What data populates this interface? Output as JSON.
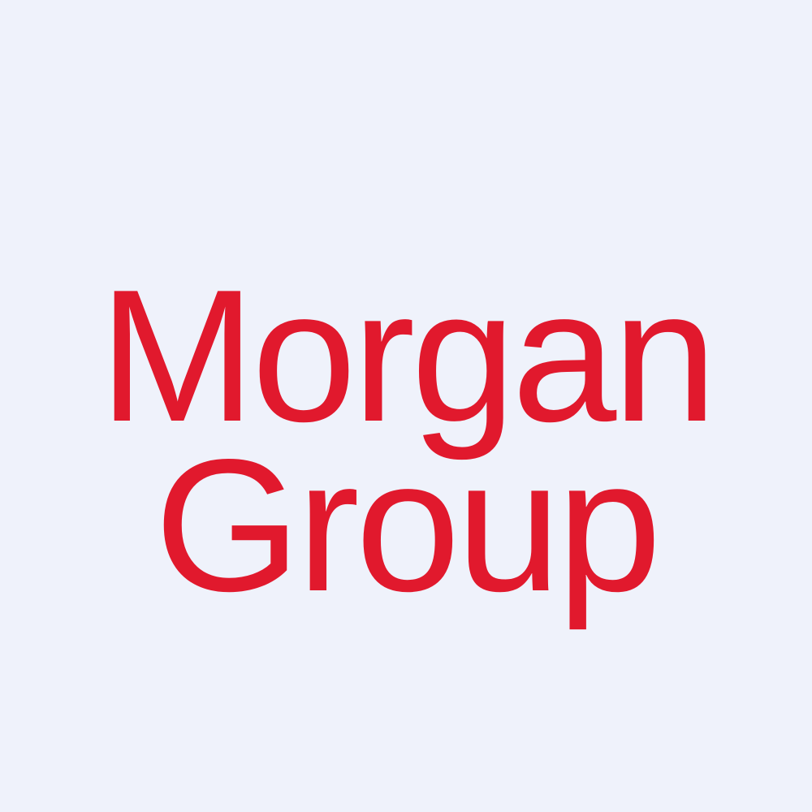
{
  "logo": {
    "line1": "Morgan",
    "line2": "Group"
  },
  "colors": {
    "background": "#eff2fb",
    "brand": "#e1192d"
  }
}
